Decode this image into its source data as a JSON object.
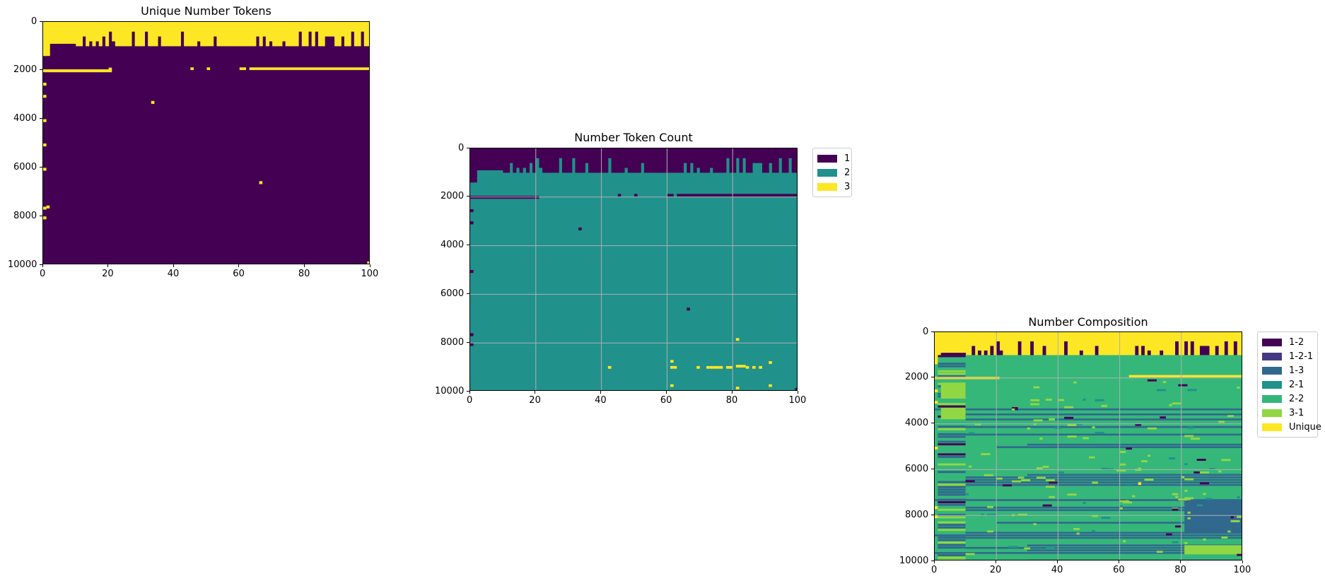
{
  "chart_data": [
    {
      "type": "heatmap",
      "title": "Unique Number Tokens",
      "xlim": [
        0,
        100
      ],
      "ylim": [
        10000,
        0
      ],
      "x_ticks": [
        "0",
        "20",
        "40",
        "60",
        "80",
        "100"
      ],
      "y_ticks": [
        "0",
        "2000",
        "4000",
        "6000",
        "8000",
        "10000"
      ],
      "grid": false,
      "legend": null,
      "colors": {
        "background": "#440154",
        "highlight": "#fde725"
      },
      "regions": [
        {
          "description": "top band",
          "x": [
            0,
            100
          ],
          "y": [
            0,
            1000
          ],
          "value": "unique"
        },
        {
          "description": "line near 2000",
          "x": [
            0,
            21
          ],
          "y": [
            1950,
            2080
          ],
          "value": "unique"
        },
        {
          "description": "line near 1900",
          "x": [
            63,
            100
          ],
          "y": [
            1850,
            1980
          ],
          "value": "unique"
        }
      ]
    },
    {
      "type": "heatmap",
      "title": "Number Token Count",
      "xlim": [
        0,
        100
      ],
      "ylim": [
        10000,
        0
      ],
      "x_ticks": [
        "0",
        "20",
        "40",
        "60",
        "80",
        "100"
      ],
      "y_ticks": [
        "0",
        "2000",
        "4000",
        "6000",
        "8000",
        "10000"
      ],
      "grid": true,
      "legend_position": "outside-right-top",
      "legend": [
        {
          "label": "1",
          "color": "#440154"
        },
        {
          "label": "2",
          "color": "#21918c"
        },
        {
          "label": "3",
          "color": "#fde725"
        }
      ]
    },
    {
      "type": "heatmap",
      "title": "Number Composition",
      "xlim": [
        0,
        100
      ],
      "ylim": [
        10000,
        0
      ],
      "x_ticks": [
        "0",
        "20",
        "40",
        "60",
        "80",
        "100"
      ],
      "y_ticks": [
        "0",
        "2000",
        "4000",
        "6000",
        "8000",
        "10000"
      ],
      "grid": true,
      "legend_position": "outside-right-top",
      "legend": [
        {
          "label": "1-2",
          "color": "#440154"
        },
        {
          "label": "1-2-1",
          "color": "#443983"
        },
        {
          "label": "1-3",
          "color": "#31688e"
        },
        {
          "label": "2-1",
          "color": "#21918c"
        },
        {
          "label": "2-2",
          "color": "#35b779"
        },
        {
          "label": "3-1",
          "color": "#90d743"
        },
        {
          "label": "Unique",
          "color": "#fde725"
        }
      ]
    }
  ]
}
